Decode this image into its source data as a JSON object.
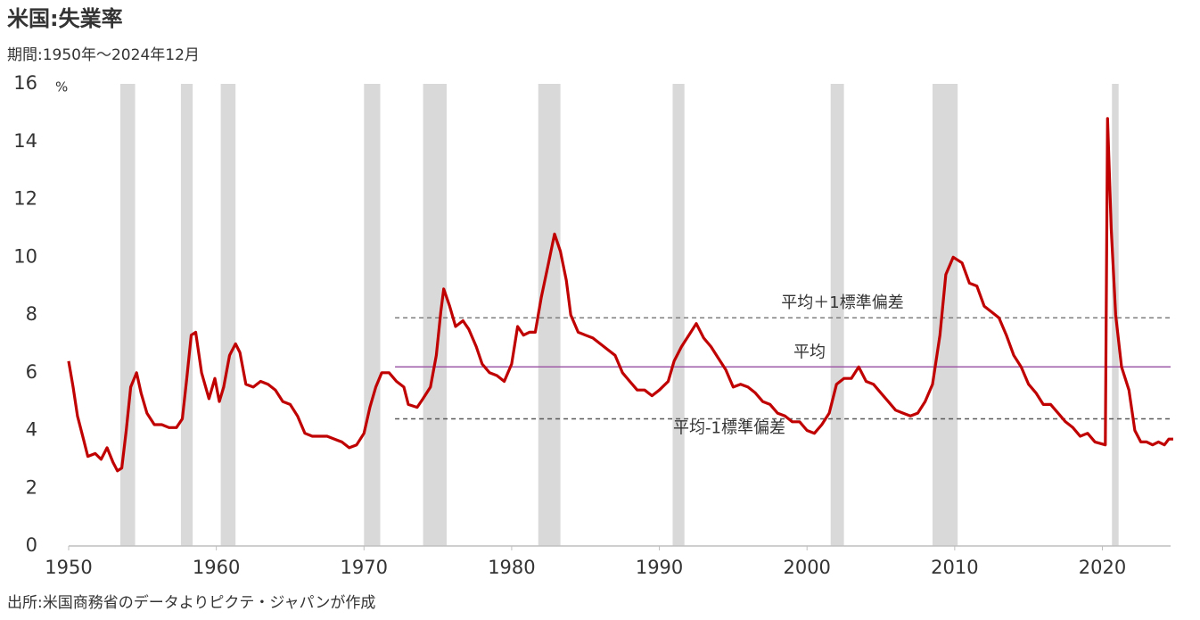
{
  "chart_data": {
    "type": "line",
    "title": "米国:失業率",
    "subtitle": "期間:1950年〜2024年12月",
    "y_unit": "%",
    "source": "出所:米国商務省のデータよりピクテ・ジャパンが作成",
    "xlim": [
      1950,
      2024.8
    ],
    "xticks": [
      1950,
      1960,
      1970,
      1980,
      1990,
      2000,
      2010,
      2020
    ],
    "ylim": [
      0,
      16
    ],
    "yticks": [
      0,
      2,
      4,
      6,
      8,
      10,
      12,
      14,
      16
    ],
    "grid": false,
    "shaded_periods": [
      [
        1953.5,
        1954.5
      ],
      [
        1957.6,
        1958.4
      ],
      [
        1960.3,
        1961.3
      ],
      [
        1970.0,
        1971.1
      ],
      [
        1974.0,
        1975.6
      ],
      [
        1981.8,
        1983.3
      ],
      [
        1990.9,
        1991.7
      ],
      [
        2001.6,
        2002.5
      ],
      [
        2008.5,
        2010.2
      ],
      [
        2020.65,
        2021.1
      ]
    ],
    "shade_color": "#d9d9d9",
    "reference_lines": [
      {
        "label": "平均＋1標準偏差",
        "value": 7.9,
        "x_start": 1972.1,
        "style": "dashed",
        "color": "#7f7f7f"
      },
      {
        "label": "平均",
        "value": 6.2,
        "x_start": 1972.1,
        "style": "solid",
        "color": "#9e5ca8"
      },
      {
        "label": "平均-1標準偏差",
        "value": 4.4,
        "x_start": 1972.1,
        "style": "dashed",
        "color": "#595959"
      }
    ],
    "x": [
      1950.0,
      1950.3,
      1950.6,
      1951.0,
      1951.3,
      1951.8,
      1952.2,
      1952.6,
      1953.0,
      1953.3,
      1953.6,
      1953.9,
      1954.2,
      1954.6,
      1954.9,
      1955.3,
      1955.8,
      1956.3,
      1956.8,
      1957.3,
      1957.7,
      1958.0,
      1958.3,
      1958.6,
      1959.0,
      1959.5,
      1959.9,
      1960.2,
      1960.5,
      1960.9,
      1961.3,
      1961.6,
      1962.0,
      1962.5,
      1963.0,
      1963.5,
      1964.0,
      1964.5,
      1965.0,
      1965.5,
      1966.0,
      1966.5,
      1967.0,
      1967.5,
      1968.0,
      1968.5,
      1969.0,
      1969.5,
      1970.0,
      1970.4,
      1970.8,
      1971.2,
      1971.7,
      1972.2,
      1972.7,
      1973.0,
      1973.6,
      1974.0,
      1974.5,
      1974.9,
      1975.2,
      1975.4,
      1975.8,
      1976.2,
      1976.7,
      1977.1,
      1977.6,
      1978.0,
      1978.5,
      1979.0,
      1979.5,
      1980.0,
      1980.4,
      1980.8,
      1981.2,
      1981.6,
      1982.0,
      1982.5,
      1982.9,
      1983.3,
      1983.7,
      1984.0,
      1984.5,
      1985.0,
      1985.5,
      1986.0,
      1986.5,
      1987.0,
      1987.5,
      1988.0,
      1988.5,
      1989.0,
      1989.5,
      1990.0,
      1990.6,
      1991.0,
      1991.5,
      1992.0,
      1992.5,
      1993.0,
      1993.5,
      1994.0,
      1994.5,
      1995.0,
      1995.5,
      1996.0,
      1996.5,
      1997.0,
      1997.5,
      1998.0,
      1998.5,
      1999.0,
      1999.5,
      2000.0,
      2000.5,
      2001.0,
      2001.5,
      2002.0,
      2002.5,
      2003.0,
      2003.5,
      2004.0,
      2004.5,
      2005.0,
      2005.5,
      2006.0,
      2006.5,
      2007.0,
      2007.5,
      2008.0,
      2008.5,
      2009.0,
      2009.4,
      2009.9,
      2010.5,
      2011.0,
      2011.5,
      2012.0,
      2012.5,
      2013.0,
      2013.5,
      2014.0,
      2014.5,
      2015.0,
      2015.5,
      2016.0,
      2016.5,
      2017.0,
      2017.5,
      2018.0,
      2018.5,
      2019.0,
      2019.5,
      2020.2,
      2020.35,
      2020.6,
      2020.9,
      2021.3,
      2021.8,
      2022.2,
      2022.6,
      2023.0,
      2023.4,
      2023.8,
      2024.2,
      2024.5,
      2024.8
    ],
    "series": [
      {
        "color": "#c00000",
        "values": [
          6.4,
          5.5,
          4.5,
          3.7,
          3.1,
          3.2,
          3.0,
          3.4,
          2.9,
          2.6,
          2.7,
          4.0,
          5.5,
          6.0,
          5.3,
          4.6,
          4.2,
          4.2,
          4.1,
          4.1,
          4.4,
          5.8,
          7.3,
          7.4,
          6.0,
          5.1,
          5.8,
          5.0,
          5.5,
          6.6,
          7.0,
          6.7,
          5.6,
          5.5,
          5.7,
          5.6,
          5.4,
          5.0,
          4.9,
          4.5,
          3.9,
          3.8,
          3.8,
          3.8,
          3.7,
          3.6,
          3.4,
          3.5,
          3.9,
          4.8,
          5.5,
          6.0,
          6.0,
          5.7,
          5.5,
          4.9,
          4.8,
          5.1,
          5.5,
          6.6,
          8.1,
          8.9,
          8.3,
          7.6,
          7.8,
          7.5,
          6.9,
          6.3,
          6.0,
          5.9,
          5.7,
          6.3,
          7.6,
          7.3,
          7.4,
          7.4,
          8.6,
          9.8,
          10.8,
          10.2,
          9.2,
          8.0,
          7.4,
          7.3,
          7.2,
          7.0,
          6.8,
          6.6,
          6.0,
          5.7,
          5.4,
          5.4,
          5.2,
          5.4,
          5.7,
          6.4,
          6.9,
          7.3,
          7.7,
          7.2,
          6.9,
          6.5,
          6.1,
          5.5,
          5.6,
          5.5,
          5.3,
          5.0,
          4.9,
          4.6,
          4.5,
          4.3,
          4.3,
          4.0,
          3.9,
          4.2,
          4.6,
          5.6,
          5.8,
          5.8,
          6.2,
          5.7,
          5.6,
          5.3,
          5.0,
          4.7,
          4.6,
          4.5,
          4.6,
          5.0,
          5.6,
          7.3,
          9.4,
          10.0,
          9.8,
          9.1,
          9.0,
          8.3,
          8.1,
          7.9,
          7.3,
          6.6,
          6.2,
          5.6,
          5.3,
          4.9,
          4.9,
          4.6,
          4.3,
          4.1,
          3.8,
          3.9,
          3.6,
          3.5,
          14.8,
          11.0,
          8.0,
          6.2,
          5.4,
          4.0,
          3.6,
          3.6,
          3.5,
          3.6,
          3.5,
          3.7,
          3.7
        ]
      }
    ]
  }
}
